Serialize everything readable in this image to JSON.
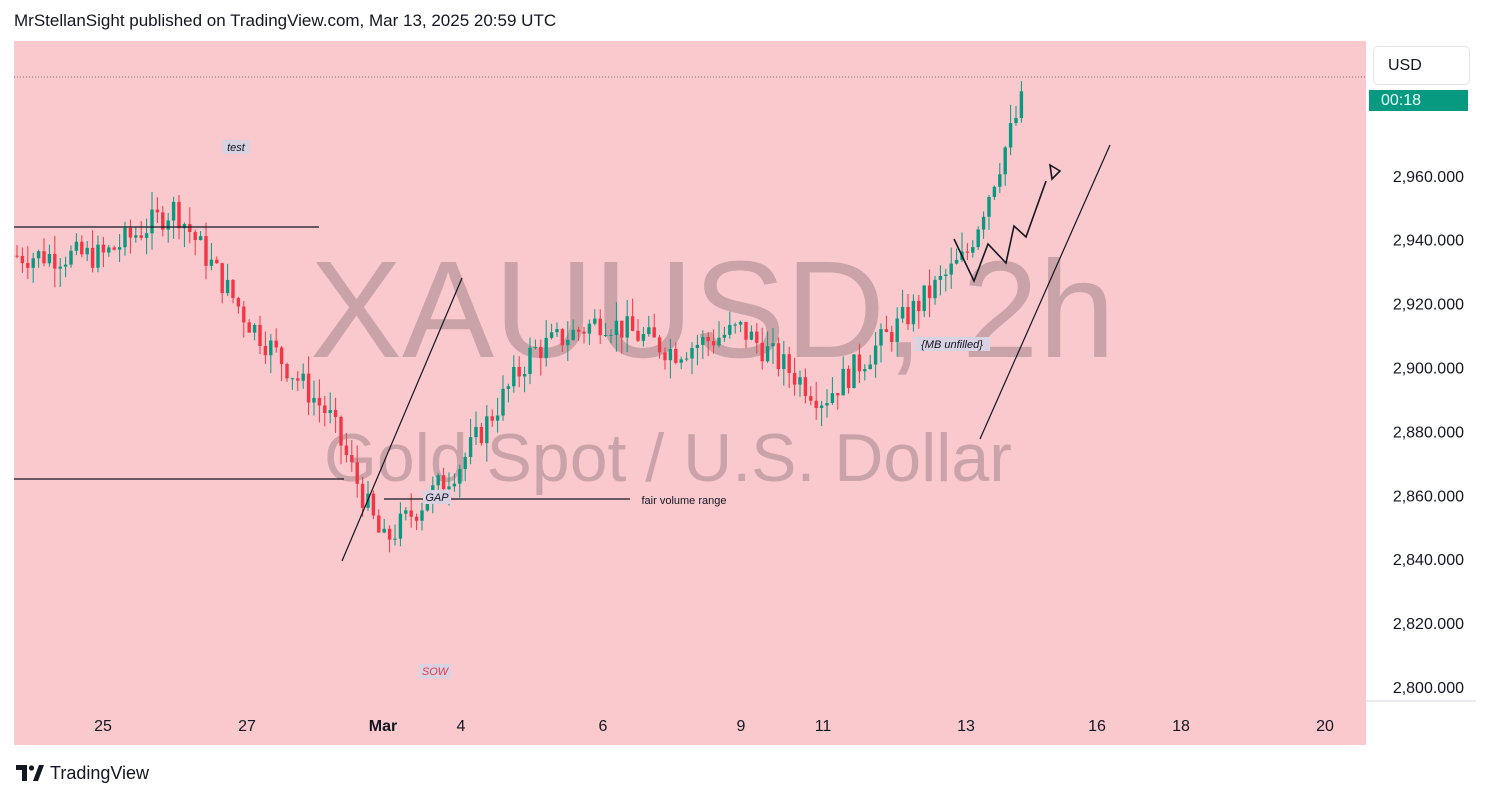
{
  "header": {
    "publish_line": "MrStellanSight published on TradingView.com, Mar 13, 2025 20:59 UTC"
  },
  "footer": {
    "brand": "TradingView",
    "logo_icon": "tradingview-logo-icon"
  },
  "currency_button": {
    "label": "USD"
  },
  "price_tag": {
    "countdown": "00:18"
  },
  "colors": {
    "background": "#f9c9cd",
    "up_candle": "#089981",
    "down_candle": "#f23645",
    "watermark": "#c9a3a8",
    "price_tag": "#089981",
    "drawings": "#131722"
  },
  "watermark": {
    "symbol": "XAUUSD, 2h",
    "description": "Gold Spot / U.S. Dollar"
  },
  "annotations": {
    "test": "test",
    "gap": "GAP",
    "fair_value_range": "fair volume range",
    "mb_unfilled": "{MB unfilled}",
    "sow": "SOW"
  },
  "chart_data": {
    "type": "candlestick",
    "symbol": "XAUUSD",
    "interval": "2h",
    "title": "Gold Spot / U.S. Dollar",
    "y_axis": {
      "ticks": [
        2800,
        2820,
        2840,
        2860,
        2880,
        2900,
        2920,
        2940,
        2960
      ],
      "tick_labels": [
        "2,800.000",
        "2,820.000",
        "2,840.000",
        "2,860.000",
        "2,880.000",
        "2,900.000",
        "2,920.000",
        "2,940.000",
        "2,960.000"
      ],
      "range": [
        2795,
        2995
      ]
    },
    "x_axis": {
      "tick_labels": [
        "25",
        "27",
        "Mar",
        "4",
        "6",
        "9",
        "11",
        "13",
        "16",
        "18",
        "20"
      ],
      "range_label": "Feb 24 – Mar 21, 2025"
    },
    "approx_path": [
      {
        "date": "Feb 24",
        "price": 2935
      },
      {
        "date": "Feb 25",
        "price": 2950
      },
      {
        "date": "Feb 26",
        "price": 2915
      },
      {
        "date": "Feb 27",
        "price": 2885
      },
      {
        "date": "Feb 28",
        "price": 2845
      },
      {
        "date": "Mar 3",
        "price": 2870
      },
      {
        "date": "Mar 4",
        "price": 2905
      },
      {
        "date": "Mar 5",
        "price": 2915
      },
      {
        "date": "Mar 6",
        "price": 2905
      },
      {
        "date": "Mar 7",
        "price": 2912
      },
      {
        "date": "Mar 10",
        "price": 2890
      },
      {
        "date": "Mar 11",
        "price": 2912
      },
      {
        "date": "Mar 12",
        "price": 2935
      },
      {
        "date": "Mar 13",
        "price": 2985
      }
    ],
    "horizontal_levels": [
      2942,
      2864,
      2857
    ],
    "grid": false,
    "legend": "none"
  }
}
